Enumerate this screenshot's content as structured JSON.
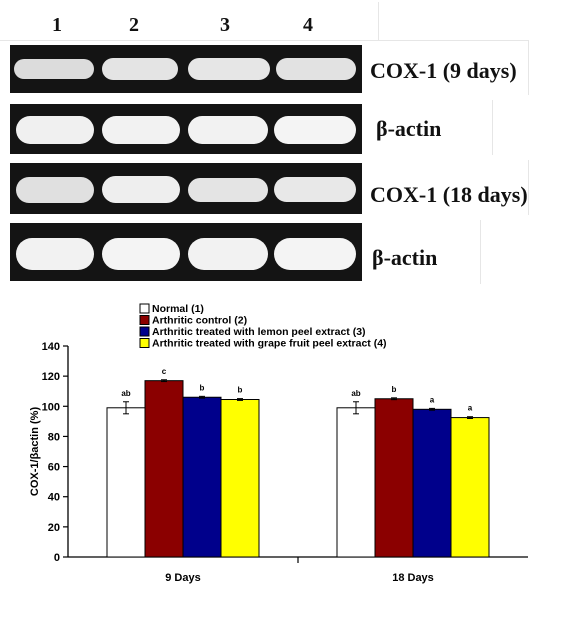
{
  "gel": {
    "lanes": [
      "1",
      "2",
      "3",
      "4"
    ],
    "rows": [
      {
        "label": "COX-1 (9 days)"
      },
      {
        "label": "β-actin"
      },
      {
        "label": "COX-1 (18 days)"
      },
      {
        "label": "β-actin"
      }
    ]
  },
  "chart_data": {
    "type": "bar",
    "categories": [
      "9 Days",
      "18 Days"
    ],
    "series": [
      {
        "name": "Normal (1)",
        "color": "#ffffff",
        "values": [
          99,
          99
        ],
        "errors": [
          4,
          4
        ],
        "letters": [
          "ab",
          "ab"
        ]
      },
      {
        "name": "Arthritic control (2)",
        "color": "#8b0000",
        "values": [
          117,
          105
        ],
        "errors": [
          0.6,
          0.6
        ],
        "letters": [
          "c",
          "b"
        ]
      },
      {
        "name": "Arthritic treated with lemon peel extract (3)",
        "color": "#00008b",
        "values": [
          106,
          98
        ],
        "errors": [
          0.6,
          0.6
        ],
        "letters": [
          "b",
          "a"
        ]
      },
      {
        "name": "Arthritic treated with grape fruit peel extract (4)",
        "color": "#ffff00",
        "values": [
          104.5,
          92.5
        ],
        "errors": [
          0.6,
          0.6
        ],
        "letters": [
          "b",
          "a"
        ]
      }
    ],
    "ylabel": "COX-1/βactin (%)",
    "xlabel": "",
    "ylim": [
      0,
      140
    ],
    "yticks": [
      "0",
      "20",
      "40",
      "60",
      "80",
      "100",
      "120",
      "140"
    ],
    "legend_position": "top-left",
    "grid": false
  }
}
